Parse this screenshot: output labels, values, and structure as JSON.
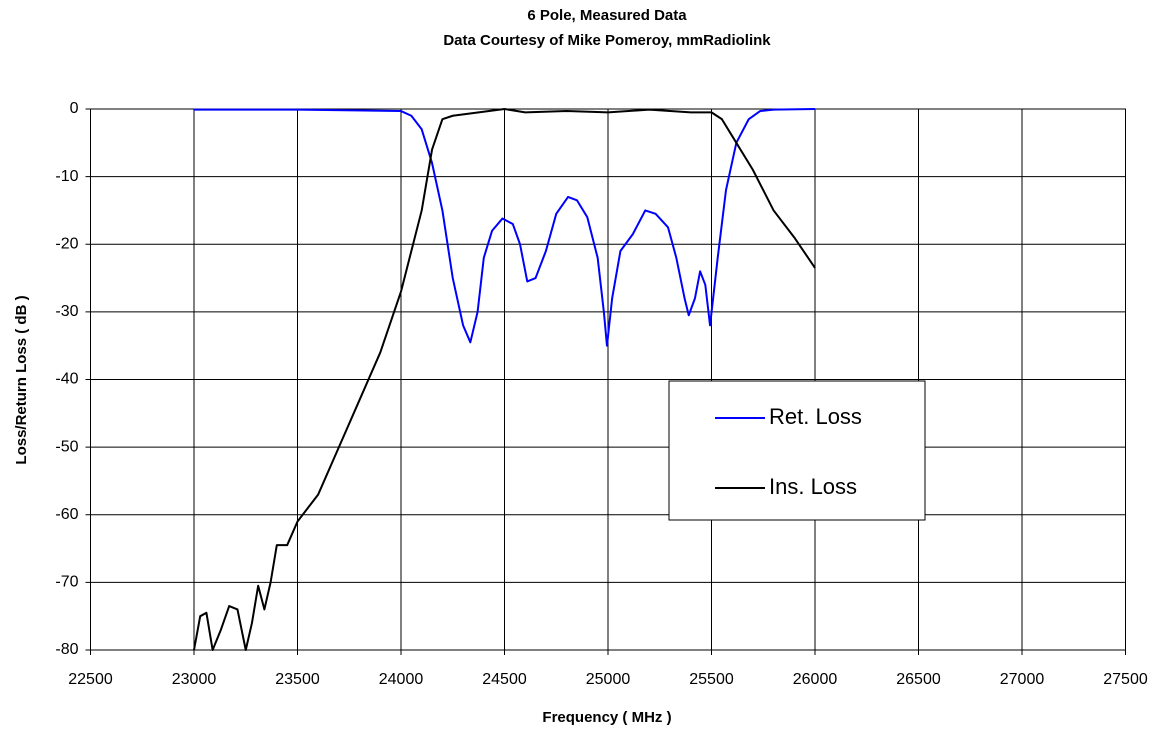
{
  "chart_data": {
    "type": "line",
    "title": "6 Pole, Measured Data",
    "subtitle": "Data Courtesy of Mike Pomeroy, mmRadiolink",
    "x_label": "Frequency ( MHz )",
    "y_label": "Loss/Return Loss ( dB )",
    "xlim": [
      22500,
      27500
    ],
    "xticks": [
      22500,
      23000,
      23500,
      24000,
      24500,
      25000,
      25500,
      26000,
      26500,
      27000,
      27500
    ],
    "ylim": [
      -80,
      0
    ],
    "yticks": [
      -80,
      -70,
      -60,
      -50,
      -40,
      -30,
      -20,
      -10,
      0
    ],
    "grid": true,
    "legend": "right",
    "series": [
      {
        "name": "Ret. Loss",
        "color": "#0000ff",
        "x": [
          23000,
          23500,
          24000,
          24050,
          24100,
          24150,
          24200,
          24250,
          24300,
          24335,
          24370,
          24400,
          24440,
          24490,
          24540,
          24575,
          24610,
          24650,
          24700,
          24750,
          24807,
          24850,
          24900,
          24950,
          24980,
          24995,
          25020,
          25060,
          25120,
          25180,
          25230,
          25290,
          25330,
          25370,
          25390,
          25420,
          25445,
          25470,
          25493,
          25530,
          25570,
          25620,
          25680,
          25735,
          25800,
          26000
        ],
        "values": [
          -0.1,
          -0.1,
          -0.3,
          -1,
          -3,
          -8,
          -15,
          -25,
          -32,
          -34.5,
          -30,
          -22,
          -18,
          -16.2,
          -17,
          -20,
          -25.5,
          -25,
          -21,
          -15.5,
          -13,
          -13.5,
          -16,
          -22,
          -30,
          -35,
          -28,
          -21,
          -18.5,
          -15,
          -15.5,
          -17.5,
          -22,
          -28,
          -30.5,
          -28,
          -24,
          -26,
          -32,
          -22,
          -12,
          -5,
          -1.5,
          -0.3,
          -0.1,
          0
        ]
      },
      {
        "name": "Ins. Loss",
        "color": "#000000",
        "x": [
          23000,
          23030,
          23060,
          23090,
          23130,
          23170,
          23210,
          23250,
          23280,
          23310,
          23340,
          23370,
          23400,
          23450,
          23500,
          23600,
          23700,
          23800,
          23900,
          24000,
          24100,
          24150,
          24200,
          24250,
          24500,
          24600,
          24800,
          25000,
          25200,
          25400,
          25500,
          25550,
          25600,
          25700,
          25800,
          25900,
          26000
        ],
        "values": [
          -80,
          -75,
          -74.5,
          -80,
          -77,
          -73.5,
          -74,
          -80,
          -76,
          -70.5,
          -74,
          -70,
          -64.5,
          -64.5,
          -61,
          -57,
          -50,
          -43,
          -36,
          -27,
          -15,
          -6,
          -1.5,
          -1,
          0,
          -0.5,
          -0.3,
          -0.5,
          -0.1,
          -0.5,
          -0.5,
          -1.5,
          -4,
          -9,
          -15,
          -19,
          -23.5
        ]
      }
    ]
  }
}
